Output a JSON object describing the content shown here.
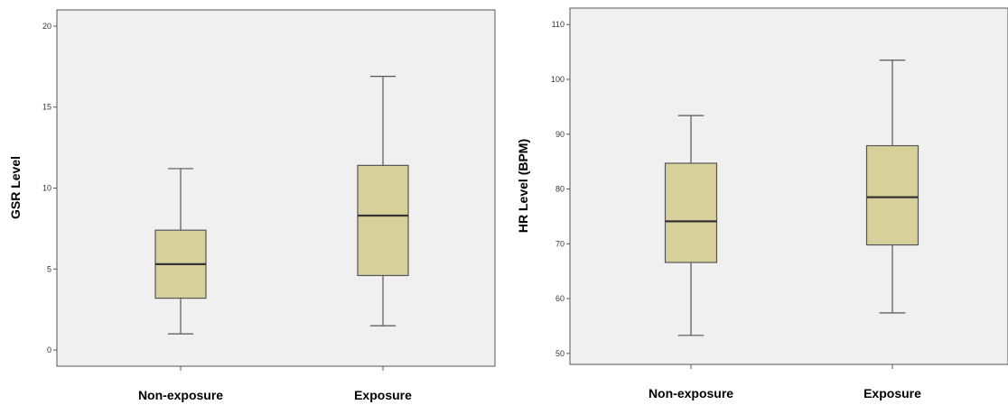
{
  "chart_data": [
    {
      "type": "box",
      "ylabel": "GSR Level",
      "ylim": [
        -1,
        21
      ],
      "yticks": [
        0,
        5,
        10,
        15,
        20
      ],
      "categories": [
        "Non-exposure",
        "Exposure"
      ],
      "boxes": [
        {
          "category": "Non-exposure",
          "min": 1.0,
          "q1": 3.2,
          "median": 5.3,
          "q3": 7.4,
          "max": 11.2
        },
        {
          "category": "Exposure",
          "min": 1.5,
          "q1": 4.6,
          "median": 8.3,
          "q3": 11.4,
          "max": 16.9
        }
      ],
      "colors": {
        "box_fill": "#d8d09a",
        "box_stroke": "#555555",
        "plot_bg": "#f0f0f0"
      }
    },
    {
      "type": "box",
      "ylabel": "HR Level (BPM)",
      "ylim": [
        48,
        113
      ],
      "yticks": [
        50,
        60,
        70,
        80,
        90,
        100,
        110
      ],
      "categories": [
        "Non-exposure",
        "Exposure"
      ],
      "boxes": [
        {
          "category": "Non-exposure",
          "min": 53.3,
          "q1": 66.6,
          "median": 74.1,
          "q3": 84.7,
          "max": 93.4
        },
        {
          "category": "Exposure",
          "min": 57.4,
          "q1": 69.8,
          "median": 78.5,
          "q3": 87.9,
          "max": 103.5
        }
      ],
      "colors": {
        "box_fill": "#d8d09a",
        "box_stroke": "#555555",
        "plot_bg": "#f0f0f0"
      }
    }
  ]
}
